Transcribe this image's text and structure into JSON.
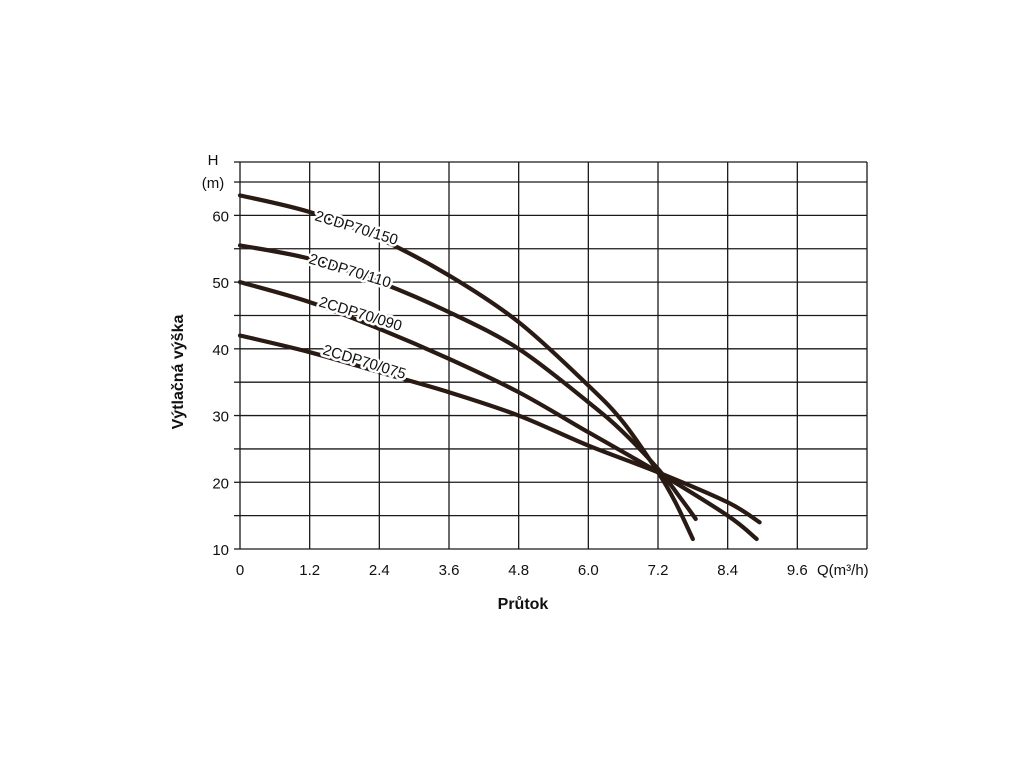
{
  "chart_data": {
    "type": "line",
    "title": "",
    "xlabel": "Průtok",
    "ylabel": "Výtlačná výška",
    "x_unit_label": "Q(m³/h)",
    "y_unit_label_line1": "H",
    "y_unit_label_line2": "(m)",
    "xlim": [
      0,
      10.8
    ],
    "ylim": [
      10,
      68
    ],
    "x_ticks": [
      0,
      1.2,
      2.4,
      3.6,
      4.8,
      6.0,
      7.2,
      8.4,
      9.6
    ],
    "x_tick_labels": [
      "0",
      "1.2",
      "2.4",
      "3.6",
      "4.8",
      "6.0",
      "7.2",
      "8.4",
      "9.6"
    ],
    "y_ticks": [
      10,
      20,
      30,
      40,
      50,
      60
    ],
    "y_tick_labels": [
      "10",
      "20",
      "30",
      "40",
      "50",
      "60"
    ],
    "x_grid": [
      0,
      1.2,
      2.4,
      3.6,
      4.8,
      6.0,
      7.2,
      8.4,
      9.6,
      10.8
    ],
    "y_grid": [
      10,
      15,
      20,
      25,
      30,
      35,
      40,
      45,
      50,
      55,
      60,
      65,
      68
    ],
    "grid": true,
    "line_color": "#2a1a14",
    "series": [
      {
        "name": "2CDP70/150",
        "x": [
          0,
          1.2,
          2.4,
          3.6,
          4.8,
          6.0,
          6.6,
          7.2,
          7.5,
          7.8
        ],
        "y": [
          63,
          60.5,
          56.5,
          51,
          44,
          34.5,
          29,
          21.5,
          17,
          11.5
        ]
      },
      {
        "name": "2CDP70/110",
        "x": [
          0,
          1.2,
          2.4,
          3.6,
          4.8,
          6.0,
          6.6,
          7.2,
          7.6,
          7.85
        ],
        "y": [
          55.5,
          53.5,
          50,
          45.5,
          40,
          32,
          27.5,
          22,
          17.5,
          14.5
        ]
      },
      {
        "name": "2CDP70/090",
        "x": [
          0,
          1.2,
          2.4,
          3.6,
          4.8,
          6.0,
          7.2,
          8.4,
          8.9
        ],
        "y": [
          50,
          47,
          43,
          38.5,
          33.5,
          27.5,
          21.5,
          15,
          11.5
        ]
      },
      {
        "name": "2CDP70/075",
        "x": [
          0,
          1.2,
          2.4,
          3.6,
          4.8,
          6.0,
          7.2,
          8.4,
          8.95
        ],
        "y": [
          42,
          39.5,
          36.5,
          33.5,
          30,
          25.5,
          21.5,
          17,
          14
        ]
      }
    ]
  }
}
